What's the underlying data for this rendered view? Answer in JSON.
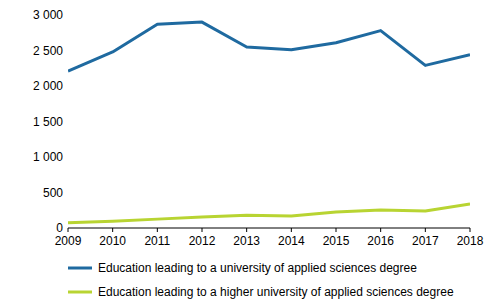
{
  "chart_data": {
    "type": "line",
    "categories": [
      "2009",
      "2010",
      "2011",
      "2012",
      "2013",
      "2014",
      "2015",
      "2016",
      "2017",
      "2018"
    ],
    "series": [
      {
        "name": "Education leading to a university of applied sciences degree",
        "color": "#1f6aa0",
        "values": [
          2210,
          2480,
          2870,
          2900,
          2550,
          2510,
          2610,
          2780,
          2290,
          2440
        ]
      },
      {
        "name": "Education leading to a higher university of applied sciences degree",
        "color": "#b8d432",
        "values": [
          75,
          95,
          125,
          155,
          180,
          170,
          225,
          255,
          240,
          340
        ]
      }
    ],
    "ylim": [
      0,
      3000
    ],
    "yticks": [
      0,
      500,
      {
        "value": 1000,
        "label": "1 000"
      },
      {
        "value": 1500,
        "label": "1 500"
      },
      {
        "value": 2000,
        "label": "2 000"
      },
      {
        "value": 2500,
        "label": "2 500"
      },
      {
        "value": 3000,
        "label": "3 000"
      }
    ],
    "grid": false,
    "legend": "bottom"
  }
}
